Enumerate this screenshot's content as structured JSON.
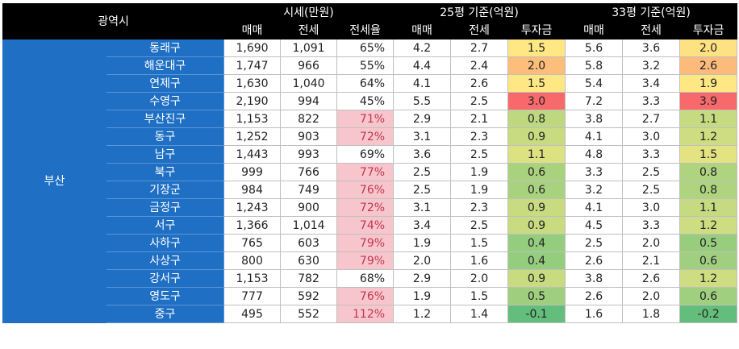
{
  "header": {
    "region_label": "광역시",
    "group_price": "시세(만원)",
    "group_25": "25평 기준(억원)",
    "group_33": "33평 기준(억원)",
    "sub": [
      "매매",
      "전세",
      "전세율",
      "매매",
      "전세",
      "투자금",
      "매매",
      "전세",
      "투자금"
    ]
  },
  "region": "부산",
  "colors": {
    "header_bg": "#000000",
    "district_bg": "#1f6fc4",
    "rate_highlight_bg": "#f7c6cd",
    "rate_highlight_text": "#c2354e",
    "invest_low": "#63be7b",
    "invest_mid": "#ffeb84",
    "invest_high": "#f8696b"
  },
  "rows": [
    {
      "district": "동래구",
      "sale": "1,690",
      "jeonse": "1,091",
      "rate": "65%",
      "rate_high": false,
      "s25": "4.2",
      "j25": "2.7",
      "i25": "1.5",
      "s33": "5.6",
      "j33": "3.6",
      "i33": "2.0"
    },
    {
      "district": "해운대구",
      "sale": "1,747",
      "jeonse": "966",
      "rate": "55%",
      "rate_high": false,
      "s25": "4.4",
      "j25": "2.4",
      "i25": "2.0",
      "s33": "5.8",
      "j33": "3.2",
      "i33": "2.6"
    },
    {
      "district": "연제구",
      "sale": "1,630",
      "jeonse": "1,040",
      "rate": "64%",
      "rate_high": false,
      "s25": "4.1",
      "j25": "2.6",
      "i25": "1.5",
      "s33": "5.4",
      "j33": "3.4",
      "i33": "1.9"
    },
    {
      "district": "수영구",
      "sale": "2,190",
      "jeonse": "994",
      "rate": "45%",
      "rate_high": false,
      "s25": "5.5",
      "j25": "2.5",
      "i25": "3.0",
      "s33": "7.2",
      "j33": "3.3",
      "i33": "3.9"
    },
    {
      "district": "부산진구",
      "sale": "1,153",
      "jeonse": "822",
      "rate": "71%",
      "rate_high": true,
      "s25": "2.9",
      "j25": "2.1",
      "i25": "0.8",
      "s33": "3.8",
      "j33": "2.7",
      "i33": "1.1"
    },
    {
      "district": "동구",
      "sale": "1,252",
      "jeonse": "903",
      "rate": "72%",
      "rate_high": true,
      "s25": "3.1",
      "j25": "2.3",
      "i25": "0.9",
      "s33": "4.1",
      "j33": "3.0",
      "i33": "1.2"
    },
    {
      "district": "남구",
      "sale": "1,443",
      "jeonse": "993",
      "rate": "69%",
      "rate_high": false,
      "s25": "3.6",
      "j25": "2.5",
      "i25": "1.1",
      "s33": "4.8",
      "j33": "3.3",
      "i33": "1.5"
    },
    {
      "district": "북구",
      "sale": "999",
      "jeonse": "766",
      "rate": "77%",
      "rate_high": true,
      "s25": "2.5",
      "j25": "1.9",
      "i25": "0.6",
      "s33": "3.3",
      "j33": "2.5",
      "i33": "0.8"
    },
    {
      "district": "기장군",
      "sale": "984",
      "jeonse": "749",
      "rate": "76%",
      "rate_high": true,
      "s25": "2.5",
      "j25": "1.9",
      "i25": "0.6",
      "s33": "3.2",
      "j33": "2.5",
      "i33": "0.8"
    },
    {
      "district": "금정구",
      "sale": "1,243",
      "jeonse": "900",
      "rate": "72%",
      "rate_high": true,
      "s25": "3.1",
      "j25": "2.3",
      "i25": "0.9",
      "s33": "4.1",
      "j33": "3.0",
      "i33": "1.1"
    },
    {
      "district": "서구",
      "sale": "1,366",
      "jeonse": "1,014",
      "rate": "74%",
      "rate_high": true,
      "s25": "3.4",
      "j25": "2.5",
      "i25": "0.9",
      "s33": "4.5",
      "j33": "3.3",
      "i33": "1.2"
    },
    {
      "district": "사하구",
      "sale": "765",
      "jeonse": "603",
      "rate": "79%",
      "rate_high": true,
      "s25": "1.9",
      "j25": "1.5",
      "i25": "0.4",
      "s33": "2.5",
      "j33": "2.0",
      "i33": "0.5"
    },
    {
      "district": "사상구",
      "sale": "800",
      "jeonse": "630",
      "rate": "79%",
      "rate_high": true,
      "s25": "2.0",
      "j25": "1.6",
      "i25": "0.4",
      "s33": "2.6",
      "j33": "2.1",
      "i33": "0.6"
    },
    {
      "district": "강서구",
      "sale": "1,153",
      "jeonse": "782",
      "rate": "68%",
      "rate_high": false,
      "s25": "2.9",
      "j25": "2.0",
      "i25": "0.9",
      "s33": "3.8",
      "j33": "2.6",
      "i33": "1.2"
    },
    {
      "district": "영도구",
      "sale": "777",
      "jeonse": "592",
      "rate": "76%",
      "rate_high": true,
      "s25": "1.9",
      "j25": "1.5",
      "i25": "0.5",
      "s33": "2.6",
      "j33": "2.0",
      "i33": "0.6"
    },
    {
      "district": "중구",
      "sale": "495",
      "jeonse": "552",
      "rate": "112%",
      "rate_high": true,
      "s25": "1.2",
      "j25": "1.4",
      "i25": "-0.1",
      "s33": "1.6",
      "j33": "1.8",
      "i33": "-0.2"
    }
  ]
}
